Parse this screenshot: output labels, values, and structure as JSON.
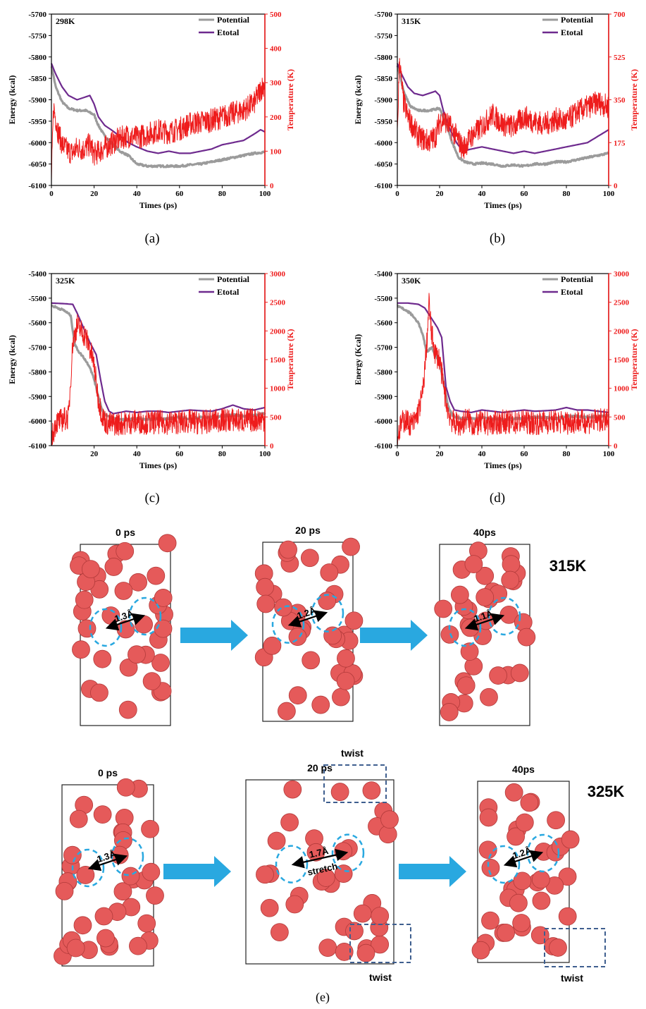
{
  "colors": {
    "potential": "#9b9b9b",
    "etotal": "#6e2a8e",
    "temperature": "#ee1c1c",
    "arrow": "#29a8e0",
    "atom": "#e55a5a",
    "dashed_circle": "#29a8e0",
    "twist_box": "#3f5f8f"
  },
  "chart_data": [
    {
      "type": "line",
      "panel_label": "(a)",
      "temp_label": "298K",
      "xlabel": "Times (ps)",
      "ylabel": "Energy (kcal)",
      "y2label": "Temperature (K)",
      "xlim": [
        0,
        100
      ],
      "xticks": [
        0,
        20,
        40,
        60,
        80,
        100
      ],
      "ylim": [
        -6100,
        -5700
      ],
      "yticks": [
        -6100,
        -6050,
        -6000,
        -5950,
        -5900,
        -5850,
        -5800,
        -5750,
        -5700
      ],
      "y2lim": [
        0,
        500
      ],
      "y2ticks": [
        0,
        100,
        200,
        300,
        400,
        500
      ],
      "legend": [
        "Potential",
        "Etotal"
      ],
      "series": [
        {
          "name": "Potential",
          "axis": "left",
          "x": [
            0,
            2,
            5,
            8,
            12,
            16,
            20,
            22,
            25,
            28,
            32,
            36,
            40,
            45,
            50,
            55,
            60,
            65,
            70,
            75,
            80,
            85,
            90,
            95,
            100
          ],
          "y": [
            -5820,
            -5870,
            -5905,
            -5920,
            -5925,
            -5925,
            -5935,
            -5960,
            -5985,
            -6000,
            -6020,
            -6030,
            -6050,
            -6055,
            -6055,
            -6055,
            -6055,
            -6052,
            -6050,
            -6045,
            -6040,
            -6035,
            -6030,
            -6025,
            -6022
          ]
        },
        {
          "name": "Etotal",
          "axis": "left",
          "x": [
            0,
            2,
            5,
            8,
            12,
            15,
            18,
            20,
            22,
            25,
            28,
            32,
            36,
            40,
            45,
            50,
            55,
            60,
            65,
            70,
            75,
            80,
            85,
            90,
            95,
            98,
            100
          ],
          "y": [
            -5815,
            -5840,
            -5870,
            -5890,
            -5900,
            -5895,
            -5890,
            -5910,
            -5940,
            -5960,
            -5970,
            -5985,
            -6000,
            -6010,
            -6020,
            -6025,
            -6020,
            -6025,
            -6025,
            -6020,
            -6015,
            -6005,
            -6000,
            -5995,
            -5980,
            -5970,
            -5975
          ]
        },
        {
          "name": "Temperature",
          "axis": "right",
          "x": [
            0,
            1,
            3,
            5,
            8,
            10,
            12,
            15,
            18,
            20,
            25,
            30,
            35,
            40,
            45,
            50,
            55,
            60,
            65,
            70,
            75,
            80,
            85,
            90,
            95,
            98,
            100
          ],
          "y": [
            20,
            230,
            160,
            120,
            100,
            95,
            110,
            105,
            120,
            90,
            110,
            130,
            145,
            140,
            150,
            160,
            155,
            165,
            180,
            185,
            190,
            200,
            210,
            220,
            240,
            280,
            300
          ]
        }
      ]
    },
    {
      "type": "line",
      "panel_label": "(b)",
      "temp_label": "315K",
      "xlabel": "Times (ps)",
      "ylabel": "Energy (kcal)",
      "y2label": "Temperature (K)",
      "xlim": [
        0,
        100
      ],
      "xticks": [
        0,
        20,
        40,
        60,
        80,
        100
      ],
      "ylim": [
        -6100,
        -5700
      ],
      "yticks": [
        -6100,
        -6050,
        -6000,
        -5950,
        -5900,
        -5850,
        -5800,
        -5750,
        -5700
      ],
      "y2lim": [
        0,
        700
      ],
      "y2ticks": [
        0,
        175,
        350,
        525,
        700
      ],
      "legend": [
        "Potential",
        "Etotal"
      ],
      "series": [
        {
          "name": "Potential",
          "axis": "left",
          "x": [
            0,
            3,
            6,
            10,
            15,
            20,
            23,
            26,
            29,
            32,
            36,
            40,
            45,
            50,
            55,
            60,
            65,
            70,
            75,
            80,
            85,
            90,
            95,
            100
          ],
          "y": [
            -5820,
            -5880,
            -5915,
            -5925,
            -5925,
            -5920,
            -5955,
            -6000,
            -6035,
            -6045,
            -6050,
            -6048,
            -6050,
            -6055,
            -6052,
            -6055,
            -6050,
            -6050,
            -6045,
            -6045,
            -6040,
            -6035,
            -6030,
            -6025
          ]
        },
        {
          "name": "Etotal",
          "axis": "left",
          "x": [
            0,
            2,
            5,
            8,
            12,
            15,
            18,
            20,
            22,
            25,
            28,
            31,
            35,
            40,
            45,
            50,
            55,
            60,
            65,
            70,
            75,
            80,
            85,
            90,
            95,
            100
          ],
          "y": [
            -5815,
            -5840,
            -5870,
            -5885,
            -5890,
            -5885,
            -5880,
            -5890,
            -5930,
            -5970,
            -6000,
            -6020,
            -6015,
            -6010,
            -6015,
            -6020,
            -6025,
            -6020,
            -6025,
            -6020,
            -6015,
            -6010,
            -6005,
            -6000,
            -5985,
            -5970
          ]
        },
        {
          "name": "Temperature",
          "axis": "right",
          "x": [
            0,
            1,
            2,
            3,
            5,
            8,
            10,
            12,
            15,
            18,
            20,
            22,
            25,
            28,
            31,
            35,
            40,
            45,
            50,
            55,
            60,
            65,
            70,
            75,
            80,
            85,
            90,
            95,
            100
          ],
          "y": [
            200,
            520,
            420,
            340,
            280,
            230,
            200,
            190,
            180,
            200,
            260,
            270,
            240,
            200,
            150,
            200,
            240,
            290,
            250,
            240,
            280,
            260,
            250,
            270,
            260,
            300,
            320,
            340,
            320
          ]
        }
      ]
    },
    {
      "type": "line",
      "panel_label": "(c)",
      "temp_label": "325K",
      "xlabel": "Times (ps)",
      "ylabel": "Energy (kcal)",
      "y2label": "Temperature (K)",
      "xlim": [
        0,
        100
      ],
      "xticks": [
        20,
        40,
        60,
        80,
        100
      ],
      "ylim": [
        -6100,
        -5400
      ],
      "yticks": [
        -6100,
        -6000,
        -5900,
        -5800,
        -5700,
        -5600,
        -5500,
        -5400
      ],
      "y2lim": [
        0,
        3000
      ],
      "y2ticks": [
        0,
        500,
        1000,
        1500,
        2000,
        2500,
        3000
      ],
      "legend": [
        "Potential",
        "Etotal"
      ],
      "series": [
        {
          "name": "Potential",
          "axis": "left",
          "x": [
            0,
            3,
            6,
            9,
            11,
            13,
            15,
            18,
            20,
            22,
            24,
            26,
            28,
            30,
            35,
            40,
            45,
            50,
            55,
            60,
            65,
            70,
            75,
            80,
            85,
            90,
            95,
            100
          ],
          "y": [
            -5530,
            -5540,
            -5550,
            -5570,
            -5690,
            -5720,
            -5740,
            -5780,
            -5830,
            -5900,
            -5960,
            -5980,
            -5985,
            -5990,
            -5995,
            -5990,
            -5995,
            -5990,
            -5990,
            -5985,
            -5990,
            -5985,
            -5985,
            -5980,
            -5975,
            -5980,
            -5975,
            -5970
          ]
        },
        {
          "name": "Etotal",
          "axis": "left",
          "x": [
            0,
            5,
            10,
            12,
            15,
            18,
            21,
            23,
            25,
            27,
            29,
            32,
            35,
            40,
            45,
            50,
            55,
            60,
            65,
            70,
            75,
            80,
            85,
            90,
            95,
            100
          ],
          "y": [
            -5520,
            -5522,
            -5525,
            -5560,
            -5620,
            -5680,
            -5730,
            -5830,
            -5920,
            -5960,
            -5970,
            -5965,
            -5960,
            -5965,
            -5960,
            -5960,
            -5965,
            -5960,
            -5955,
            -5958,
            -5960,
            -5950,
            -5935,
            -5950,
            -5955,
            -5945
          ]
        },
        {
          "name": "Temperature",
          "axis": "right",
          "x": [
            0,
            2,
            5,
            8,
            10,
            12,
            14,
            16,
            18,
            20,
            22,
            24,
            26,
            30,
            35,
            40,
            45,
            50,
            55,
            60,
            65,
            70,
            75,
            80,
            85,
            90,
            95,
            100
          ],
          "y": [
            100,
            400,
            450,
            500,
            1800,
            2100,
            2000,
            1900,
            1700,
            1400,
            800,
            500,
            380,
            380,
            400,
            420,
            400,
            410,
            400,
            410,
            420,
            400,
            430,
            440,
            450,
            430,
            450,
            460
          ]
        }
      ]
    },
    {
      "type": "line",
      "panel_label": "(d)",
      "temp_label": "350K",
      "xlabel": "Times (ps)",
      "ylabel": "Energy (Kcal)",
      "y2label": "Temperature (K)",
      "xlim": [
        0,
        100
      ],
      "xticks": [
        0,
        20,
        40,
        60,
        80,
        100
      ],
      "ylim": [
        -6100,
        -5400
      ],
      "yticks": [
        -6100,
        -6000,
        -5900,
        -5800,
        -5700,
        -5600,
        -5500,
        -5400
      ],
      "y2lim": [
        0,
        3000
      ],
      "y2ticks": [
        0,
        500,
        1000,
        1500,
        2000,
        2500,
        3000
      ],
      "legend": [
        "Potential",
        "Etotal"
      ],
      "series": [
        {
          "name": "Potential",
          "axis": "left",
          "x": [
            0,
            3,
            6,
            10,
            12,
            14,
            16,
            18,
            20,
            22,
            24,
            26,
            28,
            30,
            35,
            40,
            45,
            50,
            55,
            60,
            65,
            70,
            75,
            80,
            85,
            90,
            95,
            100
          ],
          "y": [
            -5530,
            -5545,
            -5560,
            -5600,
            -5650,
            -5720,
            -5700,
            -5730,
            -5760,
            -5850,
            -5940,
            -5975,
            -5985,
            -5990,
            -5990,
            -5985,
            -5990,
            -5995,
            -5990,
            -5990,
            -5985,
            -5985,
            -5990,
            -5980,
            -5980,
            -5985,
            -5980,
            -5975
          ]
        },
        {
          "name": "Etotal",
          "axis": "left",
          "x": [
            0,
            5,
            10,
            13,
            16,
            19,
            21,
            23,
            25,
            27,
            30,
            35,
            40,
            45,
            50,
            55,
            60,
            65,
            70,
            75,
            80,
            85,
            90,
            95,
            100
          ],
          "y": [
            -5520,
            -5520,
            -5525,
            -5540,
            -5580,
            -5620,
            -5660,
            -5860,
            -5920,
            -5955,
            -5960,
            -5965,
            -5955,
            -5960,
            -5965,
            -5960,
            -5955,
            -5960,
            -5958,
            -5955,
            -5945,
            -5955,
            -5955,
            -5960,
            -5965
          ]
        },
        {
          "name": "Temperature",
          "axis": "right",
          "x": [
            0,
            2,
            4,
            6,
            8,
            10,
            12,
            14,
            15,
            16,
            18,
            20,
            22,
            24,
            26,
            28,
            30,
            33,
            36,
            40,
            45,
            50,
            55,
            60,
            65,
            70,
            75,
            80,
            85,
            90,
            95,
            100
          ],
          "y": [
            150,
            400,
            450,
            380,
            400,
            600,
            900,
            1800,
            2500,
            2000,
            1600,
            1500,
            1000,
            600,
            420,
            380,
            360,
            480,
            350,
            400,
            380,
            420,
            400,
            420,
            390,
            410,
            420,
            400,
            430,
            410,
            440,
            430
          ]
        }
      ]
    }
  ],
  "panel_e": {
    "label": "(e)",
    "rows": [
      {
        "temperature": "315K",
        "frames": [
          {
            "time": "0 ps",
            "distance": "1.3Å"
          },
          {
            "time": "20 ps",
            "distance": "1.2Å"
          },
          {
            "time": "40ps",
            "distance": "1.1Å"
          }
        ]
      },
      {
        "temperature": "325K",
        "frames": [
          {
            "time": "0 ps",
            "distance": "1.3Å"
          },
          {
            "time": "20 ps",
            "distance": "1.7Å",
            "note": "stretch",
            "twist_labels": [
              "twist",
              "twist"
            ]
          },
          {
            "time": "40ps",
            "distance": "1.2Å",
            "twist_labels": [
              "twist"
            ]
          }
        ]
      }
    ]
  }
}
